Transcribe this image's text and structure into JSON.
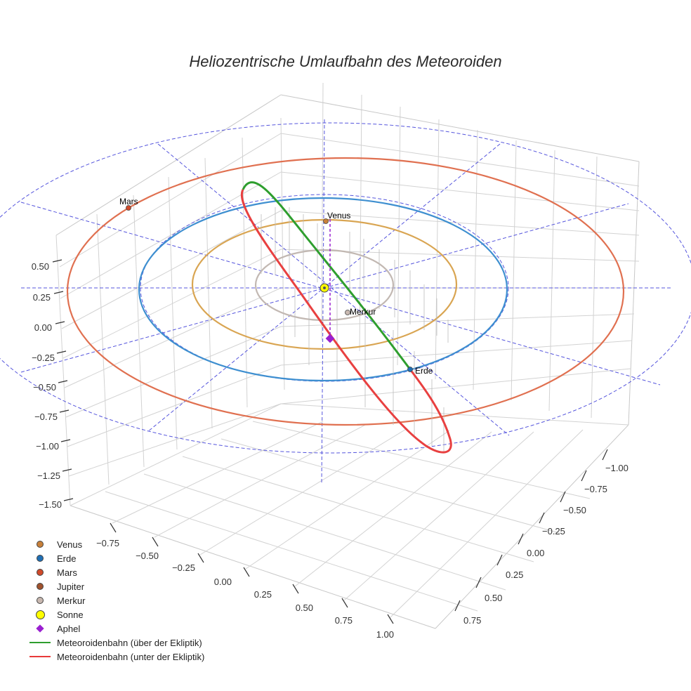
{
  "chart_data": {
    "type": "scatter3d",
    "title": "Heliozentrische Umlaufbahn des Meteoroiden",
    "axes": {
      "x": {
        "ticks": [
          "−0.75",
          "−0.50",
          "−0.25",
          "0.00",
          "0.25",
          "0.50",
          "0.75",
          "1.00"
        ],
        "range": [
          -0.9,
          1.1
        ]
      },
      "y": {
        "ticks": [
          "−1.00",
          "−0.75",
          "−0.50",
          "−0.25",
          "0.00",
          "0.25",
          "0.50",
          "0.75"
        ],
        "range": [
          -1.1,
          0.9
        ]
      },
      "z": {
        "ticks": [
          "0.50",
          "0.25",
          "0.00",
          "−0.25",
          "−0.50",
          "−0.75",
          "−1.00",
          "−1.25",
          "−1.50"
        ],
        "range": [
          -1.6,
          0.7
        ]
      }
    },
    "orbits": [
      {
        "name": "Merkur",
        "radius_au": 0.39,
        "color": "#bbb0a8"
      },
      {
        "name": "Venus",
        "radius_au": 0.72,
        "color": "#d9a050"
      },
      {
        "name": "Erde",
        "radius_au": 1.0,
        "color": "#3e8fd0"
      },
      {
        "name": "Mars",
        "radius_au": 1.52,
        "color": "#e07050"
      }
    ],
    "bodies": [
      {
        "name": "Venus",
        "label": "Venus",
        "color": "#c8803a"
      },
      {
        "name": "Erde",
        "label": "Erde",
        "color": "#1f6fb5"
      },
      {
        "name": "Mars",
        "label": "Mars",
        "color": "#d04a2a"
      },
      {
        "name": "Merkur",
        "label": "Merkur",
        "color": "#c0b0a8"
      },
      {
        "name": "Sonne",
        "label": "",
        "color": "#ffff00"
      }
    ],
    "aphel": {
      "name": "Aphel",
      "color": "#9a20d0"
    },
    "meteoroid_orbit": {
      "above": {
        "name": "Meteoroidenbahn (über der Ekliptik)",
        "color": "#2e9e2e"
      },
      "below": {
        "name": "Meteoroidenbahn (unter der Ekliptik)",
        "color": "#e83a3a"
      }
    },
    "ecliptic_grid_color": "#5555dd",
    "legend": [
      {
        "label": "Venus",
        "kind": "dot",
        "color": "#c8803a"
      },
      {
        "label": "Erde",
        "kind": "dot",
        "color": "#1f6fb5"
      },
      {
        "label": "Mars",
        "kind": "dot",
        "color": "#d04a2a"
      },
      {
        "label": "Jupiter",
        "kind": "dot",
        "color": "#a0522d"
      },
      {
        "label": "Merkur",
        "kind": "dot",
        "color": "#c8b8b0"
      },
      {
        "label": "Sonne",
        "kind": "bigdot",
        "color": "#ffff00"
      },
      {
        "label": "Aphel",
        "kind": "diamond",
        "color": "#9a20d0"
      },
      {
        "label": "Meteoroidenbahn (über der Ekliptik)",
        "kind": "line",
        "color": "#2e9e2e"
      },
      {
        "label": "Meteoroidenbahn (unter der Ekliptik)",
        "kind": "line",
        "color": "#e83a3a"
      }
    ]
  }
}
